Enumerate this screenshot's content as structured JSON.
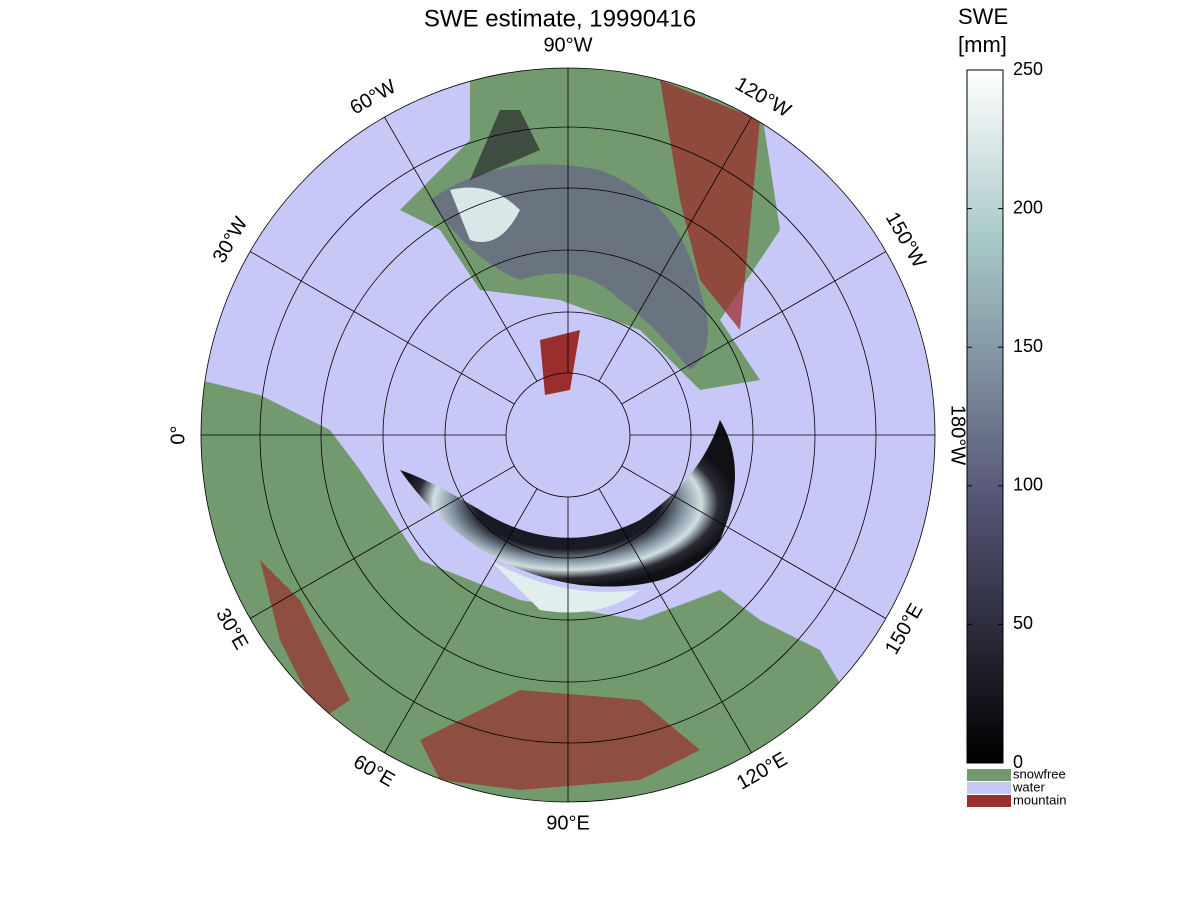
{
  "title": "SWE estimate, 19990416",
  "longitude_labels": [
    "90°W",
    "120°W",
    "150°W",
    "180°W",
    "150°E",
    "120°E",
    "90°E",
    "60°E",
    "30°E",
    "0°",
    "30°W",
    "60°W"
  ],
  "colorbar": {
    "title": [
      "SWE",
      "[mm]"
    ],
    "range": [
      0,
      250
    ],
    "ticks": [
      0,
      50,
      100,
      150,
      200,
      250
    ]
  },
  "legend": [
    {
      "name": "snowfree",
      "color": "#739a6e"
    },
    {
      "name": "water",
      "color": "#c8c8f8"
    },
    {
      "name": "mountain",
      "color": "#9a2e2e"
    }
  ]
}
